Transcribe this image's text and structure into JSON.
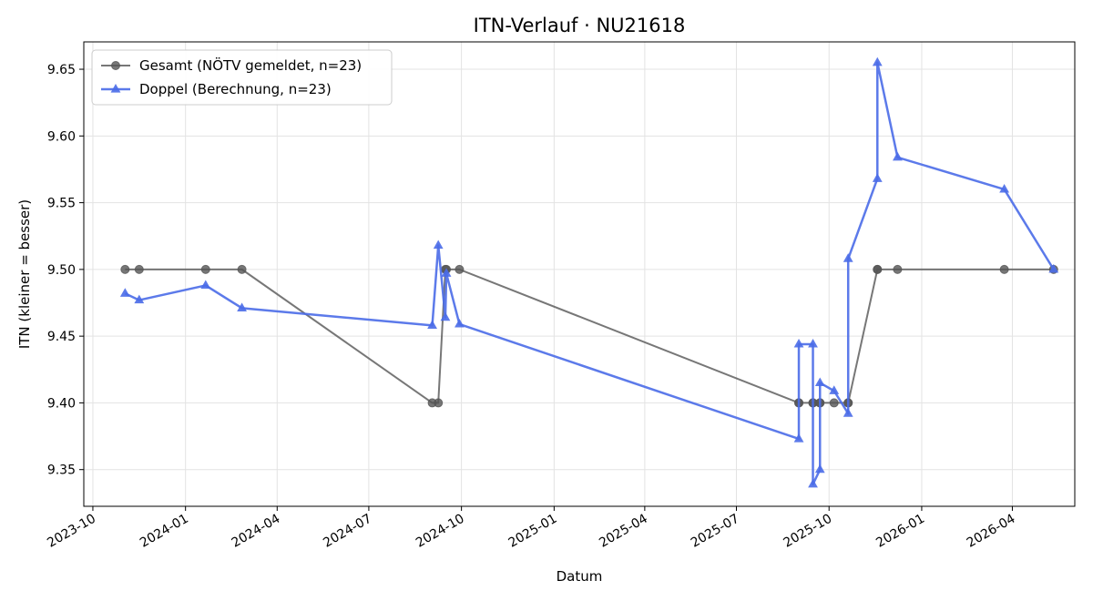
{
  "chart_data": {
    "type": "line",
    "title": "ITN-Verlauf · NU21618",
    "xlabel": "Datum",
    "ylabel": "ITN  (kleiner = besser)",
    "x_axis_type": "date",
    "xlim": [
      "2023-09-22",
      "2026-06-02"
    ],
    "ylim": [
      9.3225,
      9.6705
    ],
    "x_ticks": [
      "2023-10-01",
      "2024-01-01",
      "2024-04-01",
      "2024-07-01",
      "2024-10-01",
      "2025-01-01",
      "2025-04-01",
      "2025-07-01",
      "2025-10-01",
      "2026-01-01",
      "2026-04-01"
    ],
    "x_tick_labels": [
      "2023-10",
      "2024-01",
      "2024-04",
      "2024-07",
      "2024-10",
      "2025-01",
      "2025-04",
      "2025-07",
      "2025-10",
      "2026-01",
      "2026-04"
    ],
    "y_ticks": [
      9.35,
      9.4,
      9.45,
      9.5,
      9.55,
      9.6,
      9.65
    ],
    "y_tick_labels": [
      "9.35",
      "9.40",
      "9.45",
      "9.50",
      "9.55",
      "9.60",
      "9.65"
    ],
    "grid": true,
    "legend_position": "top-left",
    "series": [
      {
        "name": "Gesamt (NÖTV gemeldet, n=23)",
        "color": "#555555",
        "marker": "circle",
        "points": [
          [
            "2023-11-02",
            9.5
          ],
          [
            "2023-11-16",
            9.5
          ],
          [
            "2024-01-21",
            9.5
          ],
          [
            "2024-02-26",
            9.5
          ],
          [
            "2024-09-02",
            9.4
          ],
          [
            "2024-09-08",
            9.4
          ],
          [
            "2024-09-15",
            9.5
          ],
          [
            "2024-09-16",
            9.5
          ],
          [
            "2024-09-29",
            9.5
          ],
          [
            "2025-09-01",
            9.4
          ],
          [
            "2025-09-01",
            9.4
          ],
          [
            "2025-09-15",
            9.4
          ],
          [
            "2025-09-15",
            9.4
          ],
          [
            "2025-09-22",
            9.4
          ],
          [
            "2025-09-22",
            9.4
          ],
          [
            "2025-10-06",
            9.4
          ],
          [
            "2025-10-20",
            9.4
          ],
          [
            "2025-10-20",
            9.4
          ],
          [
            "2025-11-18",
            9.5
          ],
          [
            "2025-11-18",
            9.5
          ],
          [
            "2025-12-08",
            9.5
          ],
          [
            "2026-03-24",
            9.5
          ],
          [
            "2026-05-12",
            9.5
          ]
        ]
      },
      {
        "name": "Doppel (Berechnung, n=23)",
        "color": "#4a6ce8",
        "marker": "triangle",
        "points": [
          [
            "2023-11-02",
            9.482
          ],
          [
            "2023-11-16",
            9.477
          ],
          [
            "2024-01-21",
            9.488
          ],
          [
            "2024-02-26",
            9.471
          ],
          [
            "2024-09-02",
            9.458
          ],
          [
            "2024-09-08",
            9.518
          ],
          [
            "2024-09-15",
            9.464
          ],
          [
            "2024-09-16",
            9.497
          ],
          [
            "2024-09-29",
            9.459
          ],
          [
            "2025-09-01",
            9.373
          ],
          [
            "2025-09-01",
            9.444
          ],
          [
            "2025-09-15",
            9.444
          ],
          [
            "2025-09-15",
            9.339
          ],
          [
            "2025-09-22",
            9.35
          ],
          [
            "2025-09-22",
            9.415
          ],
          [
            "2025-10-06",
            9.409
          ],
          [
            "2025-10-20",
            9.392
          ],
          [
            "2025-10-20",
            9.508
          ],
          [
            "2025-11-18",
            9.568
          ],
          [
            "2025-11-18",
            9.655
          ],
          [
            "2025-12-08",
            9.584
          ],
          [
            "2026-03-24",
            9.56
          ],
          [
            "2026-05-12",
            9.5
          ]
        ]
      }
    ]
  }
}
